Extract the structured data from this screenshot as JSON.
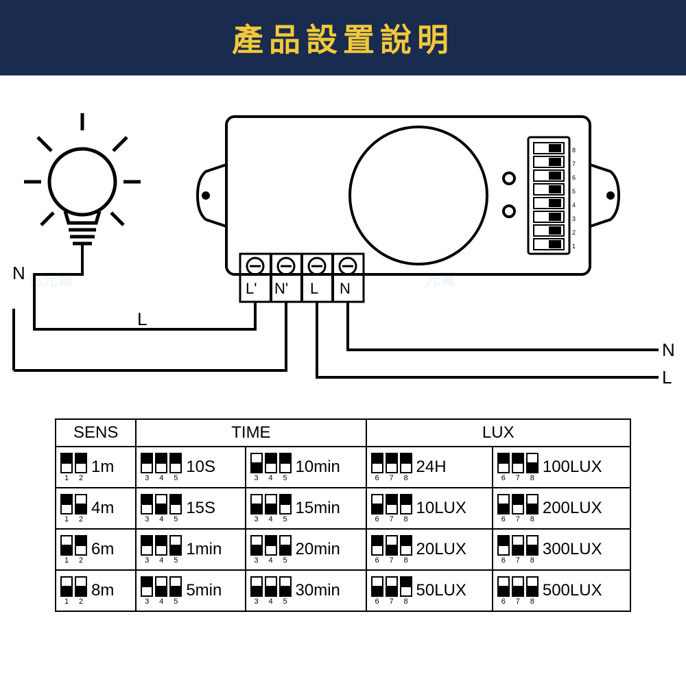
{
  "header": {
    "title": "產品設置說明",
    "bg": "#192b4f",
    "fg": "#f2c83a"
  },
  "wiring": {
    "terminals": [
      "L'",
      "N'",
      "L",
      "N"
    ],
    "bulb_side": {
      "N": "N",
      "L": "L"
    },
    "power_side": {
      "N": "N",
      "L": "L"
    }
  },
  "table": {
    "headers": {
      "sens": "SENS",
      "time": "TIME",
      "lux": "LUX"
    },
    "sens": [
      {
        "sw": [
          "up",
          "up"
        ],
        "nums": [
          "1",
          "2"
        ],
        "label": "1m"
      },
      {
        "sw": [
          "up",
          "down"
        ],
        "nums": [
          "1",
          "2"
        ],
        "label": "4m"
      },
      {
        "sw": [
          "down",
          "up"
        ],
        "nums": [
          "1",
          "2"
        ],
        "label": "6m"
      },
      {
        "sw": [
          "down",
          "down"
        ],
        "nums": [
          "1",
          "2"
        ],
        "label": "8m"
      }
    ],
    "timeA": [
      {
        "sw": [
          "up",
          "up",
          "up"
        ],
        "nums": [
          "3",
          "4",
          "5"
        ],
        "label": "10S"
      },
      {
        "sw": [
          "up",
          "down",
          "up"
        ],
        "nums": [
          "3",
          "4",
          "5"
        ],
        "label": "15S"
      },
      {
        "sw": [
          "up",
          "up",
          "down"
        ],
        "nums": [
          "3",
          "4",
          "5"
        ],
        "label": "1min"
      },
      {
        "sw": [
          "up",
          "down",
          "down"
        ],
        "nums": [
          "3",
          "4",
          "5"
        ],
        "label": "5min"
      }
    ],
    "timeB": [
      {
        "sw": [
          "down",
          "up",
          "up"
        ],
        "nums": [
          "3",
          "4",
          "5"
        ],
        "label": "10min"
      },
      {
        "sw": [
          "down",
          "down",
          "up"
        ],
        "nums": [
          "3",
          "4",
          "5"
        ],
        "label": "15min"
      },
      {
        "sw": [
          "down",
          "up",
          "down"
        ],
        "nums": [
          "3",
          "4",
          "5"
        ],
        "label": "20min"
      },
      {
        "sw": [
          "down",
          "down",
          "down"
        ],
        "nums": [
          "3",
          "4",
          "5"
        ],
        "label": "30min"
      }
    ],
    "luxA": [
      {
        "sw": [
          "up",
          "up",
          "up"
        ],
        "nums": [
          "6",
          "7",
          "8"
        ],
        "label": "24H"
      },
      {
        "sw": [
          "down",
          "up",
          "up"
        ],
        "nums": [
          "6",
          "7",
          "8"
        ],
        "label": "10LUX"
      },
      {
        "sw": [
          "up",
          "down",
          "up"
        ],
        "nums": [
          "6",
          "7",
          "8"
        ],
        "label": "20LUX"
      },
      {
        "sw": [
          "down",
          "down",
          "up"
        ],
        "nums": [
          "6",
          "7",
          "8"
        ],
        "label": "50LUX"
      }
    ],
    "luxB": [
      {
        "sw": [
          "up",
          "up",
          "down"
        ],
        "nums": [
          "6",
          "7",
          "8"
        ],
        "label": "100LUX"
      },
      {
        "sw": [
          "down",
          "up",
          "down"
        ],
        "nums": [
          "6",
          "7",
          "8"
        ],
        "label": "200LUX"
      },
      {
        "sw": [
          "up",
          "down",
          "down"
        ],
        "nums": [
          "6",
          "7",
          "8"
        ],
        "label": "300LUX"
      },
      {
        "sw": [
          "down",
          "down",
          "down"
        ],
        "nums": [
          "6",
          "7",
          "8"
        ],
        "label": "500LUX"
      }
    ]
  },
  "style": {
    "stroke": "#000000",
    "stroke_width_main": 4,
    "stroke_width_thin": 3,
    "bg": "#ffffff"
  }
}
